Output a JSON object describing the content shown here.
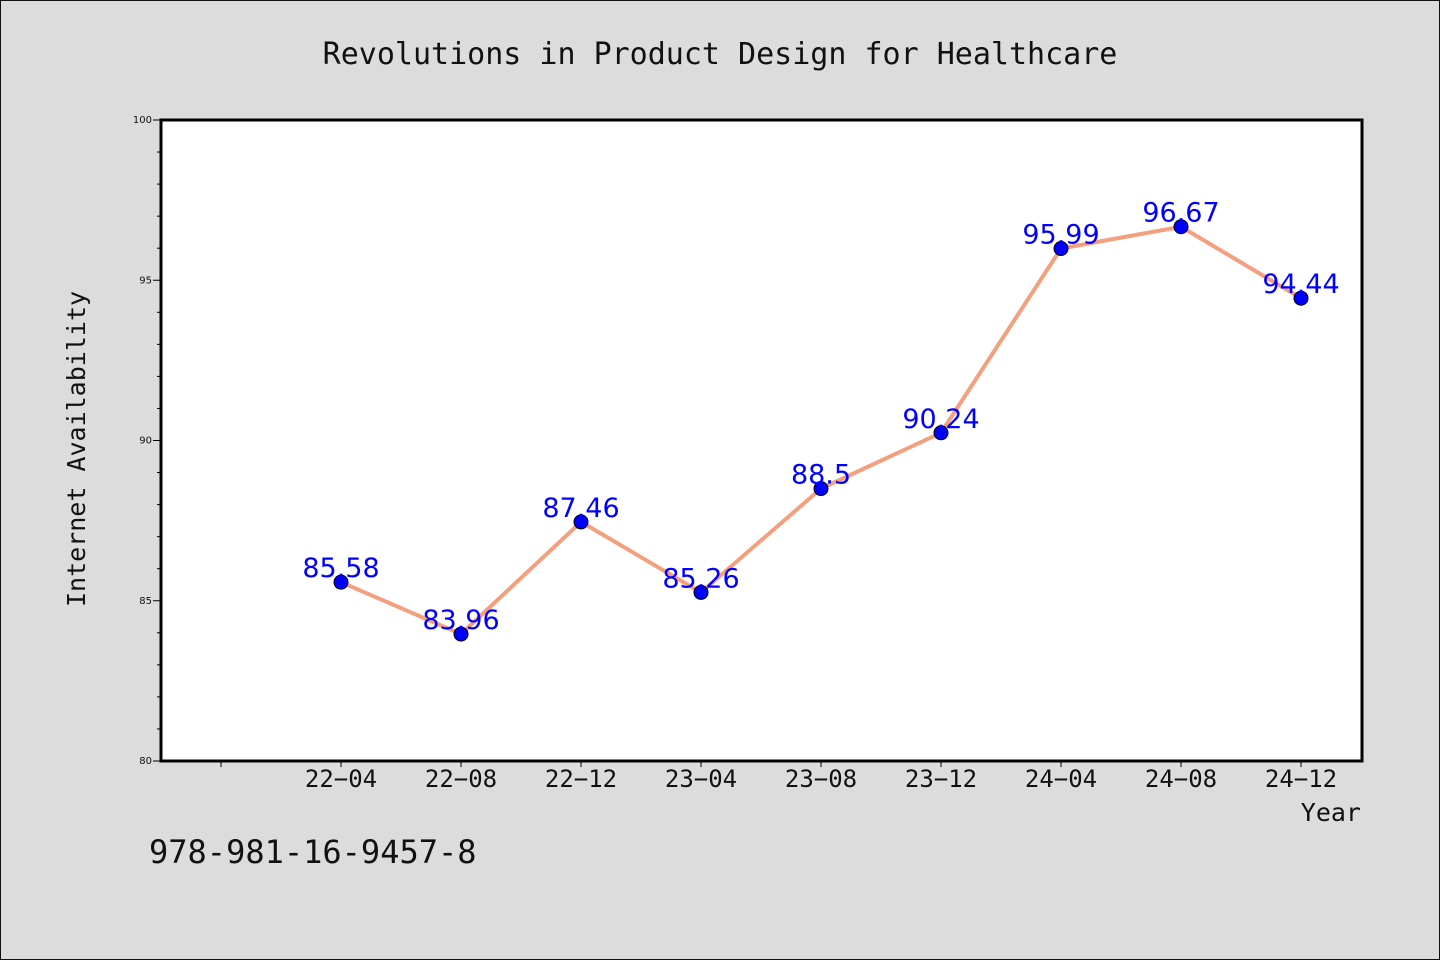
{
  "chart_data": {
    "type": "line",
    "title": "Revolutions in Product Design for Healthcare",
    "xlabel": "Year",
    "ylabel": "Internet Availability",
    "categories": [
      "22-04",
      "22-08",
      "22-12",
      "23-04",
      "23-08",
      "23-12",
      "24-04",
      "24-08",
      "24-12"
    ],
    "x_tick_labels": [
      "22−04",
      "22−08",
      "22−12",
      "23−04",
      "23−08",
      "23−12",
      "24−04",
      "24−08",
      "24−12"
    ],
    "series": [
      {
        "values": [
          85.58,
          83.96,
          87.46,
          85.26,
          88.5,
          90.24,
          95.99,
          96.67,
          94.44
        ],
        "value_labels": [
          "85.58",
          "83.96",
          "87.46",
          "85.26",
          "88.5",
          "90.24",
          "95.99",
          "96.67",
          "94.44"
        ],
        "line_color": "#f4a07e",
        "marker_color": "#0000ff"
      }
    ],
    "ylim": [
      80,
      100
    ],
    "y_ticks": [
      80,
      85,
      90,
      95,
      100
    ],
    "y_tick_labels": [
      "80",
      "85",
      "90",
      "95",
      "100"
    ],
    "grid": false,
    "legend": "none"
  },
  "footnote": "978-981-16-9457-8",
  "colors": {
    "background": "#dcdcdc",
    "plot_background": "#ffffff",
    "line": "#f4a07e",
    "marker": "#0000ff",
    "data_label": "#0000ff"
  }
}
